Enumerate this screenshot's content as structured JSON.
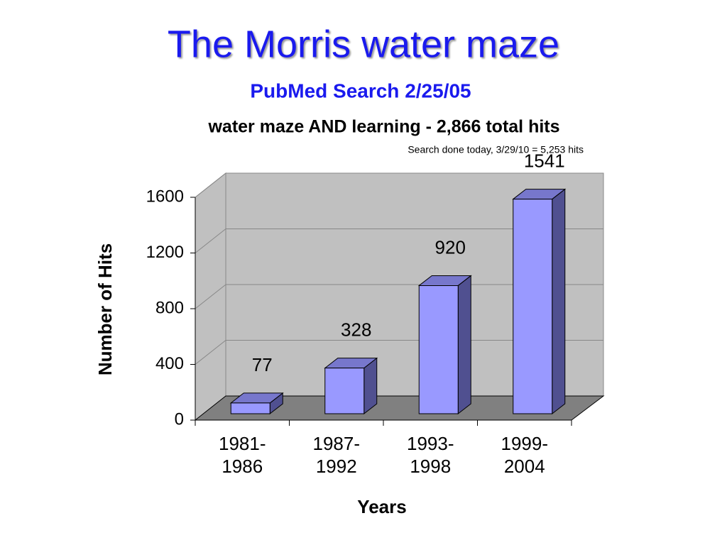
{
  "chart_data": {
    "type": "bar3d",
    "title": "The Morris water maze",
    "subtitle": "PubMed Search 2/25/05",
    "chart_title": "water maze AND learning - 2,866 total hits",
    "annotation": "Search done today, 3/29/10 = 5,253 hits",
    "x_label": "Years",
    "y_label": "Number of Hits",
    "categories": [
      "1981-1986",
      "1987-1992",
      "1993-1998",
      "1999-2004"
    ],
    "values": [
      77,
      328,
      920,
      1541
    ],
    "color": "#9999ff",
    "ylim": [
      0,
      1600
    ],
    "yticks": [
      0,
      400,
      800,
      1200,
      1600
    ],
    "grid": true
  }
}
